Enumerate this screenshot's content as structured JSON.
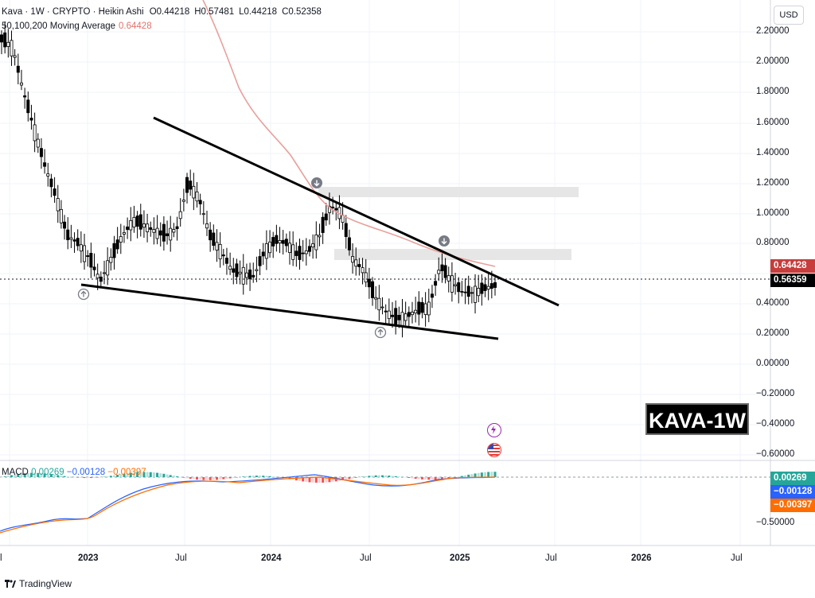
{
  "header": {
    "symbol_line": "Kava · 1W · CRYPTO · Heikin Ashi",
    "open": "O0.44218",
    "high": "H0.57481",
    "low": "L0.44218",
    "close": "C0.52358",
    "ma_label": "50,100,200 Moving Average",
    "ma_value": "0.64428"
  },
  "macd_header": {
    "label": "MACD",
    "hist": "0.00269",
    "macd": "−0.00128",
    "signal": "−0.00397"
  },
  "currency_button": "USD",
  "price_axis": [
    "2.20000",
    "2.00000",
    "1.80000",
    "1.60000",
    "1.40000",
    "1.20000",
    "1.00000",
    "0.80000",
    "0.40000",
    "0.20000",
    "0.00000",
    "−0.20000",
    "−0.40000",
    "−0.60000"
  ],
  "price_tags": {
    "ma": {
      "text": "0.64428",
      "color": "#c73c3c"
    },
    "last": {
      "text": "0.56359",
      "color": "#000000"
    }
  },
  "macd_axis": {
    "tick": "−0.50000",
    "tags": [
      {
        "text": "0.00269",
        "color": "#26a69a"
      },
      {
        "text": "−0.00128",
        "color": "#2962ff"
      },
      {
        "text": "−0.00397",
        "color": "#ff6d00"
      }
    ]
  },
  "time_axis": [
    "l",
    "2023",
    "Jul",
    "2024",
    "Jul",
    "2025",
    "Jul",
    "2026",
    "Jul"
  ],
  "badge_text": "KAVA-1W",
  "footer_text": "TradingView",
  "colors": {
    "up": "#000000",
    "down": "#000000",
    "ma": "#e8a09b",
    "macd": "#2962ff",
    "signal": "#ff6d00",
    "hist_up": "#26a69a",
    "hist_down": "#ef5350"
  },
  "chart_data": {
    "type": "candlestick",
    "price_ylim": [
      -0.6,
      2.2
    ],
    "approx_close_path": [
      2.15,
      2.1,
      1.8,
      1.55,
      1.3,
      1.1,
      0.85,
      0.8,
      0.7,
      0.55,
      0.7,
      0.85,
      0.95,
      0.92,
      0.88,
      0.85,
      0.9,
      1.2,
      1.1,
      0.85,
      0.75,
      0.62,
      0.6,
      0.58,
      0.75,
      0.82,
      0.8,
      0.72,
      0.75,
      0.85,
      1.05,
      1.0,
      0.7,
      0.62,
      0.45,
      0.35,
      0.3,
      0.32,
      0.36,
      0.38,
      0.65,
      0.55,
      0.48,
      0.47,
      0.5,
      0.52
    ],
    "moving_average": {
      "value": 0.64428
    },
    "trendlines": [
      {
        "name": "upper",
        "from": [
          "2022-05",
          1.63
        ],
        "to": [
          "2025-07",
          0.38
        ]
      },
      {
        "name": "lower",
        "from": [
          "2022-12",
          0.51
        ],
        "to": [
          "2025-03",
          0.16
        ]
      }
    ],
    "resistance_zones": [
      [
        1.1,
        1.17
      ],
      [
        0.69,
        0.76
      ]
    ]
  }
}
